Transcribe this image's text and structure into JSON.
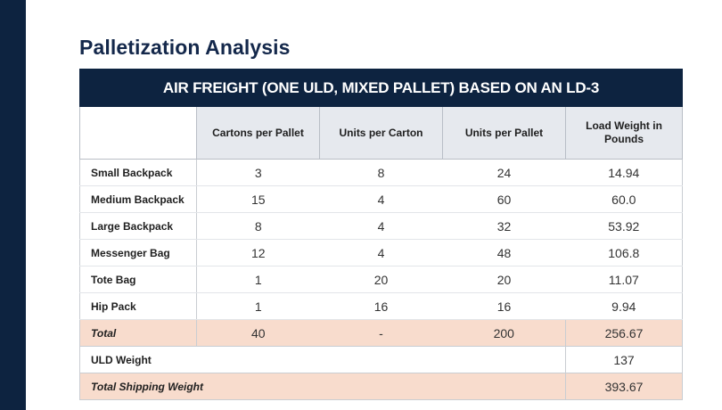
{
  "page": {
    "title": "Palletization Analysis"
  },
  "table": {
    "banner": "AIR FREIGHT (ONE ULD, MIXED PALLET) BASED ON AN LD-3",
    "headers": [
      "",
      "Cartons per Pallet",
      "Units per Carton",
      "Units per Pallet",
      "Load Weight in Pounds"
    ],
    "rows": [
      {
        "label": "Small Backpack",
        "cartons_per_pallet": "3",
        "units_per_carton": "8",
        "units_per_pallet": "24",
        "load_weight": "14.94"
      },
      {
        "label": "Medium Backpack",
        "cartons_per_pallet": "15",
        "units_per_carton": "4",
        "units_per_pallet": "60",
        "load_weight": "60.0"
      },
      {
        "label": "Large Backpack",
        "cartons_per_pallet": "8",
        "units_per_carton": "4",
        "units_per_pallet": "32",
        "load_weight": "53.92"
      },
      {
        "label": "Messenger Bag",
        "cartons_per_pallet": "12",
        "units_per_carton": "4",
        "units_per_pallet": "48",
        "load_weight": "106.8"
      },
      {
        "label": "Tote Bag",
        "cartons_per_pallet": "1",
        "units_per_carton": "20",
        "units_per_pallet": "20",
        "load_weight": "11.07"
      },
      {
        "label": "Hip Pack",
        "cartons_per_pallet": "1",
        "units_per_carton": "16",
        "units_per_pallet": "16",
        "load_weight": "9.94"
      }
    ],
    "total": {
      "label": "Total",
      "cartons_per_pallet": "40",
      "units_per_carton": "-",
      "units_per_pallet": "200",
      "load_weight": "256.67"
    },
    "uld": {
      "label": "ULD Weight",
      "load_weight": "137"
    },
    "shipping": {
      "label": "Total Shipping Weight",
      "load_weight": "393.67"
    }
  },
  "colors": {
    "navy": "#0d2340",
    "title": "#14284b",
    "header_bg": "#e6e9ee",
    "total_bg": "#f8dccd"
  }
}
